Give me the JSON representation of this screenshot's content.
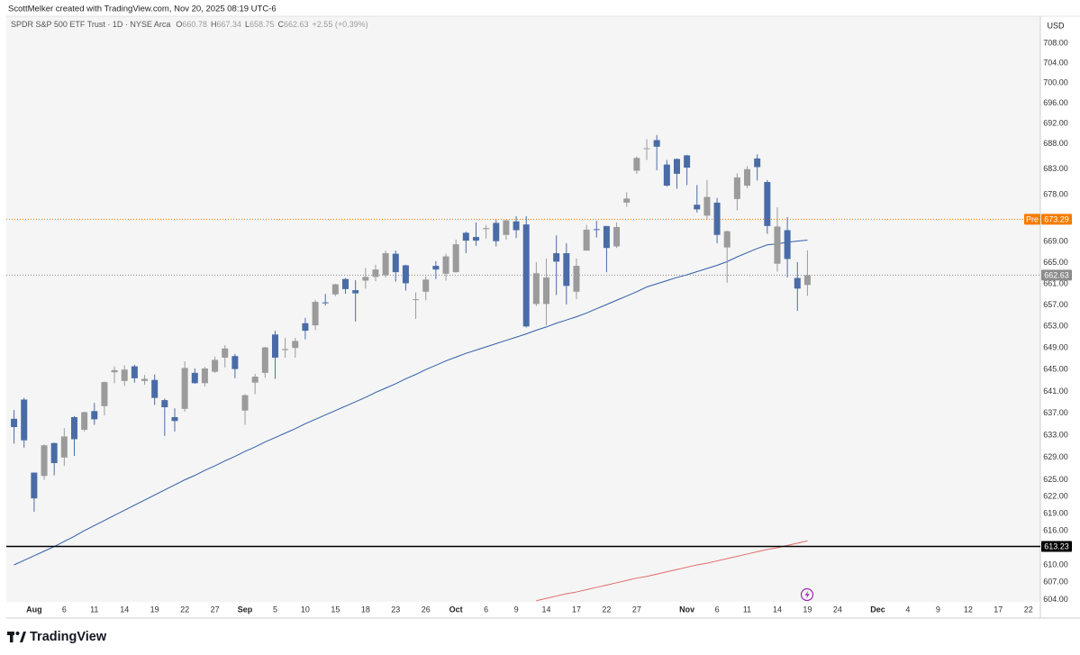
{
  "header": "ScottMelker created with TradingView.com, Nov 20, 2025 08:19 UTC-6",
  "chart_data": {
    "type": "candlestick",
    "title": "SPDR S&P 500 ETF Trust · 1D · NYSE Arca",
    "legend_labels": [
      "O",
      "H",
      "L",
      "C"
    ],
    "change": "+2.55 (+0.39%)",
    "currency": "USD",
    "categories": [
      null,
      null,
      "Aug",
      null,
      null,
      "6",
      null,
      null,
      "11",
      null,
      null,
      "14",
      null,
      null,
      "19",
      null,
      null,
      "22",
      null,
      null,
      "27",
      null,
      null,
      "Sep",
      null,
      null,
      "5",
      null,
      null,
      "10",
      null,
      null,
      "15",
      null,
      null,
      "18",
      null,
      null,
      "23",
      null,
      null,
      "26",
      null,
      null,
      "Oct",
      null,
      null,
      "6",
      null,
      null,
      "9",
      null,
      null,
      "14",
      null,
      null,
      "17",
      null,
      null,
      "22",
      null,
      null,
      "27",
      null,
      null,
      null,
      null,
      "Nov",
      null,
      null,
      "6",
      null,
      null,
      "11",
      null,
      null,
      "14",
      null,
      null,
      "19",
      null,
      null,
      "24",
      null,
      null,
      null,
      "Dec",
      null,
      null,
      "4",
      null,
      null,
      "9",
      null,
      null,
      "12",
      null,
      null,
      "17",
      null,
      null,
      "22"
    ],
    "open": [
      636.0,
      639.5,
      626.3,
      625.7,
      631.6,
      629.0,
      636.3,
      634.0,
      637.4,
      638.3,
      644.5,
      642.9,
      645.6,
      642.9,
      643.1,
      639.4,
      636.3,
      637.8,
      644.4,
      642.5,
      644.6,
      647.2,
      647.5,
      637.5,
      642.6,
      644.4,
      651.5,
      648.6,
      649.0,
      653.6,
      653.2,
      657.5,
      659.0,
      661.9,
      659.8,
      661.6,
      662.3,
      662.6,
      666.7,
      664.5,
      658.0,
      659.5,
      664.4,
      662.9,
      663.2,
      670.7,
      669.9,
      671.4,
      672.6,
      670.3,
      672.9,
      672.3,
      657.2,
      657.2,
      666.8,
      666.8,
      659.5,
      667.3,
      671.4,
      672.0,
      668.1,
      676.5,
      682.7,
      687.1,
      688.7,
      683.9,
      685.0,
      685.7,
      676.1,
      674.0,
      676.5,
      667.9,
      677.2,
      679.8,
      685.1,
      680.5,
      664.8,
      671.2,
      662.1,
      660.78,
      null,
      null,
      null,
      null,
      null,
      null,
      null,
      null,
      null,
      null,
      null,
      null,
      null,
      null,
      null,
      null,
      null,
      null,
      null,
      null,
      null,
      null
    ],
    "high": [
      637.6,
      639.8,
      626.3,
      631.4,
      631.7,
      634.3,
      636.5,
      637.3,
      638.9,
      642.8,
      645.6,
      645.8,
      645.9,
      644.0,
      644.1,
      639.7,
      637.9,
      646.5,
      645.2,
      645.5,
      647.4,
      649.5,
      647.9,
      640.5,
      644.2,
      649.2,
      652.2,
      650.9,
      650.9,
      654.6,
      658.0,
      659.1,
      661.0,
      662.1,
      661.7,
      664.0,
      664.6,
      667.3,
      667.3,
      664.6,
      659.4,
      662.4,
      665.3,
      666.7,
      669.4,
      670.9,
      672.7,
      672.2,
      673.2,
      673.2,
      673.9,
      673.9,
      665.1,
      665.8,
      670.2,
      668.7,
      665.8,
      672.2,
      673.0,
      672.0,
      672.7,
      678.5,
      685.5,
      688.9,
      689.7,
      684.8,
      685.1,
      685.8,
      679.9,
      680.9,
      677.4,
      671.1,
      682.2,
      683.6,
      685.9,
      680.9,
      675.6,
      673.7,
      665.1,
      667.34,
      null,
      null,
      null,
      null,
      null,
      null,
      null,
      null,
      null,
      null,
      null,
      null,
      null,
      null,
      null,
      null,
      null,
      null,
      null,
      null,
      null,
      null
    ],
    "low": [
      631.5,
      630.8,
      619.3,
      625.0,
      625.8,
      627.5,
      629.3,
      633.7,
      634.9,
      636.6,
      642.5,
      642.0,
      642.6,
      642.2,
      638.5,
      632.9,
      633.7,
      637.3,
      642.4,
      641.9,
      644.4,
      645.4,
      643.4,
      634.9,
      640.5,
      643.5,
      643.3,
      647.2,
      647.2,
      650.6,
      652.3,
      656.9,
      658.7,
      659.1,
      653.9,
      660.1,
      661.5,
      662.2,
      661.4,
      659.7,
      654.4,
      657.9,
      661.9,
      661.6,
      663.1,
      666.8,
      668.2,
      669.6,
      668.1,
      669.4,
      669.7,
      652.8,
      656.8,
      653.2,
      658.9,
      657.1,
      658.1,
      667.3,
      669.8,
      663.2,
      667.8,
      675.7,
      682.1,
      684.8,
      682.8,
      679.6,
      679.2,
      679.9,
      674.6,
      673.2,
      668.7,
      661.2,
      675.0,
      679.3,
      680.8,
      670.5,
      663.3,
      662.2,
      655.9,
      658.75,
      null,
      null,
      null,
      null,
      null,
      null,
      null,
      null,
      null,
      null,
      null,
      null,
      null,
      null,
      null,
      null,
      null,
      null,
      null,
      null,
      null,
      null
    ],
    "close": [
      634.5,
      632.1,
      621.7,
      631.2,
      628.0,
      632.8,
      632.3,
      637.2,
      635.9,
      642.7,
      644.9,
      645.0,
      643.4,
      643.3,
      639.8,
      638.1,
      635.6,
      645.3,
      642.5,
      645.2,
      646.8,
      648.9,
      645.1,
      640.3,
      643.7,
      649.1,
      647.2,
      648.8,
      650.3,
      652.2,
      657.6,
      657.4,
      660.9,
      660.0,
      659.2,
      662.3,
      663.7,
      666.8,
      663.2,
      661.1,
      658.1,
      661.8,
      663.7,
      666.2,
      668.5,
      669.2,
      669.2,
      671.6,
      669.1,
      673.1,
      671.2,
      653.0,
      663.0,
      662.2,
      665.2,
      660.6,
      664.4,
      671.3,
      671.3,
      667.8,
      671.8,
      677.3,
      685.2,
      687.1,
      687.4,
      679.8,
      682.1,
      683.3,
      675.2,
      677.6,
      670.3,
      671.0,
      681.4,
      683.0,
      683.4,
      672.0,
      671.9,
      665.7,
      660.1,
      662.63,
      null,
      null,
      null,
      null,
      null,
      null,
      null,
      null,
      null,
      null,
      null,
      null,
      null,
      null,
      null,
      null,
      null,
      null,
      null,
      null,
      null,
      null
    ],
    "up_color": "#9b9b9b",
    "down_color": "#4a6ca6",
    "series": [
      {
        "color": "#2f5ea8",
        "values": [
          610.0,
          610.8,
          611.6,
          612.4,
          613.2,
          614.1,
          615.0,
          616.0,
          616.9,
          617.8,
          618.7,
          619.6,
          620.5,
          621.4,
          622.3,
          623.2,
          624.1,
          625.0,
          625.8,
          626.7,
          627.5,
          628.4,
          629.2,
          630.1,
          630.9,
          631.8,
          632.6,
          633.4,
          634.2,
          635.1,
          635.9,
          636.7,
          637.5,
          638.3,
          639.1,
          639.9,
          640.8,
          641.6,
          642.4,
          643.3,
          644.1,
          645.0,
          645.8,
          646.6,
          647.3,
          648.0,
          648.6,
          649.2,
          649.8,
          650.4,
          651.0,
          651.6,
          652.3,
          652.9,
          653.6,
          654.2,
          654.8,
          655.5,
          656.3,
          657.1,
          657.9,
          658.7,
          659.5,
          660.4,
          661.0,
          661.6,
          662.2,
          662.7,
          663.3,
          663.9,
          664.5,
          665.2,
          666.1,
          666.9,
          667.7,
          668.4,
          668.6,
          668.9,
          669.1,
          669.3,
          null,
          null,
          null,
          null,
          null,
          null,
          null,
          null,
          null,
          null,
          null,
          null,
          null,
          null,
          null,
          null,
          null,
          null,
          null,
          null,
          null,
          null
        ]
      },
      {
        "color": "#e06b6b",
        "values": [
          null,
          null,
          null,
          null,
          null,
          null,
          null,
          null,
          null,
          null,
          null,
          null,
          null,
          null,
          null,
          null,
          null,
          null,
          null,
          null,
          null,
          null,
          null,
          null,
          null,
          null,
          null,
          null,
          null,
          null,
          null,
          null,
          null,
          null,
          null,
          null,
          null,
          null,
          null,
          null,
          null,
          null,
          null,
          null,
          null,
          null,
          null,
          null,
          null,
          null,
          null,
          null,
          603.8,
          604.2,
          604.6,
          605.0,
          605.3,
          605.7,
          606.1,
          606.5,
          606.9,
          607.3,
          607.7,
          608.0,
          608.4,
          608.8,
          609.2,
          609.6,
          610.0,
          610.3,
          610.7,
          611.1,
          611.5,
          611.9,
          612.3,
          612.7,
          613.0,
          613.4,
          613.8,
          614.2,
          null,
          null,
          null,
          null,
          null,
          null,
          null,
          null,
          null,
          null,
          null,
          null,
          null,
          null,
          null,
          null,
          null,
          null,
          null,
          null,
          null,
          null
        ]
      }
    ],
    "level": {
      "value": 613.23,
      "color": "#000000"
    },
    "premarket": {
      "label": "Pre",
      "value": 673.29,
      "color": "#f57c00"
    },
    "last_color": "#8c8c8c",
    "log_scale": true,
    "grid": false,
    "ylim": [
      603.6,
      713.5
    ],
    "yticks": [
      {
        "value": 708,
        "label": "708.00"
      },
      {
        "value": 704,
        "label": "704.00"
      },
      {
        "value": 700,
        "label": "700.00"
      },
      {
        "value": 696,
        "label": "696.00"
      },
      {
        "value": 692,
        "label": "692.00"
      },
      {
        "value": 688,
        "label": "688.00"
      },
      {
        "value": 683,
        "label": "683.00"
      },
      {
        "value": 678,
        "label": "678.00"
      },
      {
        "value": 669,
        "label": "669.00"
      },
      {
        "value": 665,
        "label": "665.00"
      },
      {
        "value": 661,
        "label": "661.00"
      },
      {
        "value": 657,
        "label": "657.00"
      },
      {
        "value": 653,
        "label": "653.00"
      },
      {
        "value": 649,
        "label": "649.00"
      },
      {
        "value": 645,
        "label": "645.00"
      },
      {
        "value": 641,
        "label": "641.00"
      },
      {
        "value": 637,
        "label": "637.00"
      },
      {
        "value": 633,
        "label": "633.00"
      },
      {
        "value": 629,
        "label": "629.00"
      },
      {
        "value": 625,
        "label": "625.00"
      },
      {
        "value": 622,
        "label": "622.00"
      },
      {
        "value": 619,
        "label": "619.00"
      },
      {
        "value": 616,
        "label": "616.00"
      },
      {
        "value": 610,
        "label": "610.00"
      },
      {
        "value": 607,
        "label": "607.00"
      },
      {
        "value": 604,
        "label": "604.00"
      }
    ]
  },
  "footer": {
    "brand": "TradingView"
  }
}
